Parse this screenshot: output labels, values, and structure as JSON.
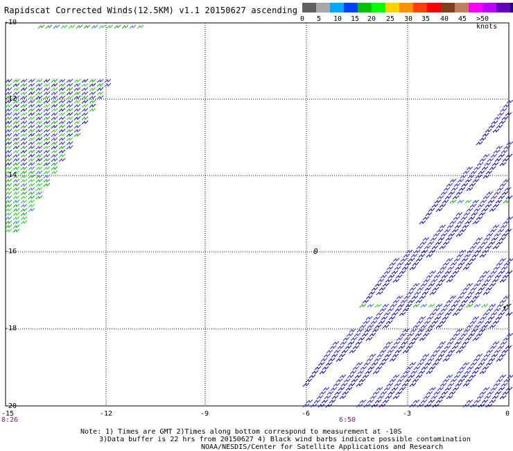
{
  "title": "Rapidscat Corrected Winds(12.5KM) v1.1 20150627 ascending",
  "scale": {
    "colors": [
      "#606060",
      "#a8a8a8",
      "#00a8ff",
      "#0040ff",
      "#00c000",
      "#00ff00",
      "#ffd000",
      "#ff9000",
      "#ff4000",
      "#ff0000",
      "#804020",
      "#c08060",
      "#ff00ff",
      "#c000ff",
      "#6000c0",
      "#200080"
    ],
    "labels": [
      "0",
      "5",
      "10",
      "15",
      "20",
      "25",
      "30",
      "35",
      "40",
      "45",
      ">50 knots"
    ]
  },
  "map": {
    "x_ticks": [
      "-15",
      "-12",
      "-9",
      "-6",
      "-3",
      "0"
    ],
    "y_ticks": [
      "-10",
      "-12",
      "-14",
      "-16",
      "-18",
      "-20"
    ],
    "times": [
      "8:26",
      "6:50"
    ],
    "marker": "0"
  },
  "notes": {
    "line1": "Note: 1) Times are GMT 2)Times along bottom correspond to measurement at -10S",
    "line2": "3)Data buffer is 22 hrs from 20150627 4) Black wind barbs indicate possible contamination",
    "line3": "NOAA/NESDIS/Center for Satellite Applications and Research"
  }
}
